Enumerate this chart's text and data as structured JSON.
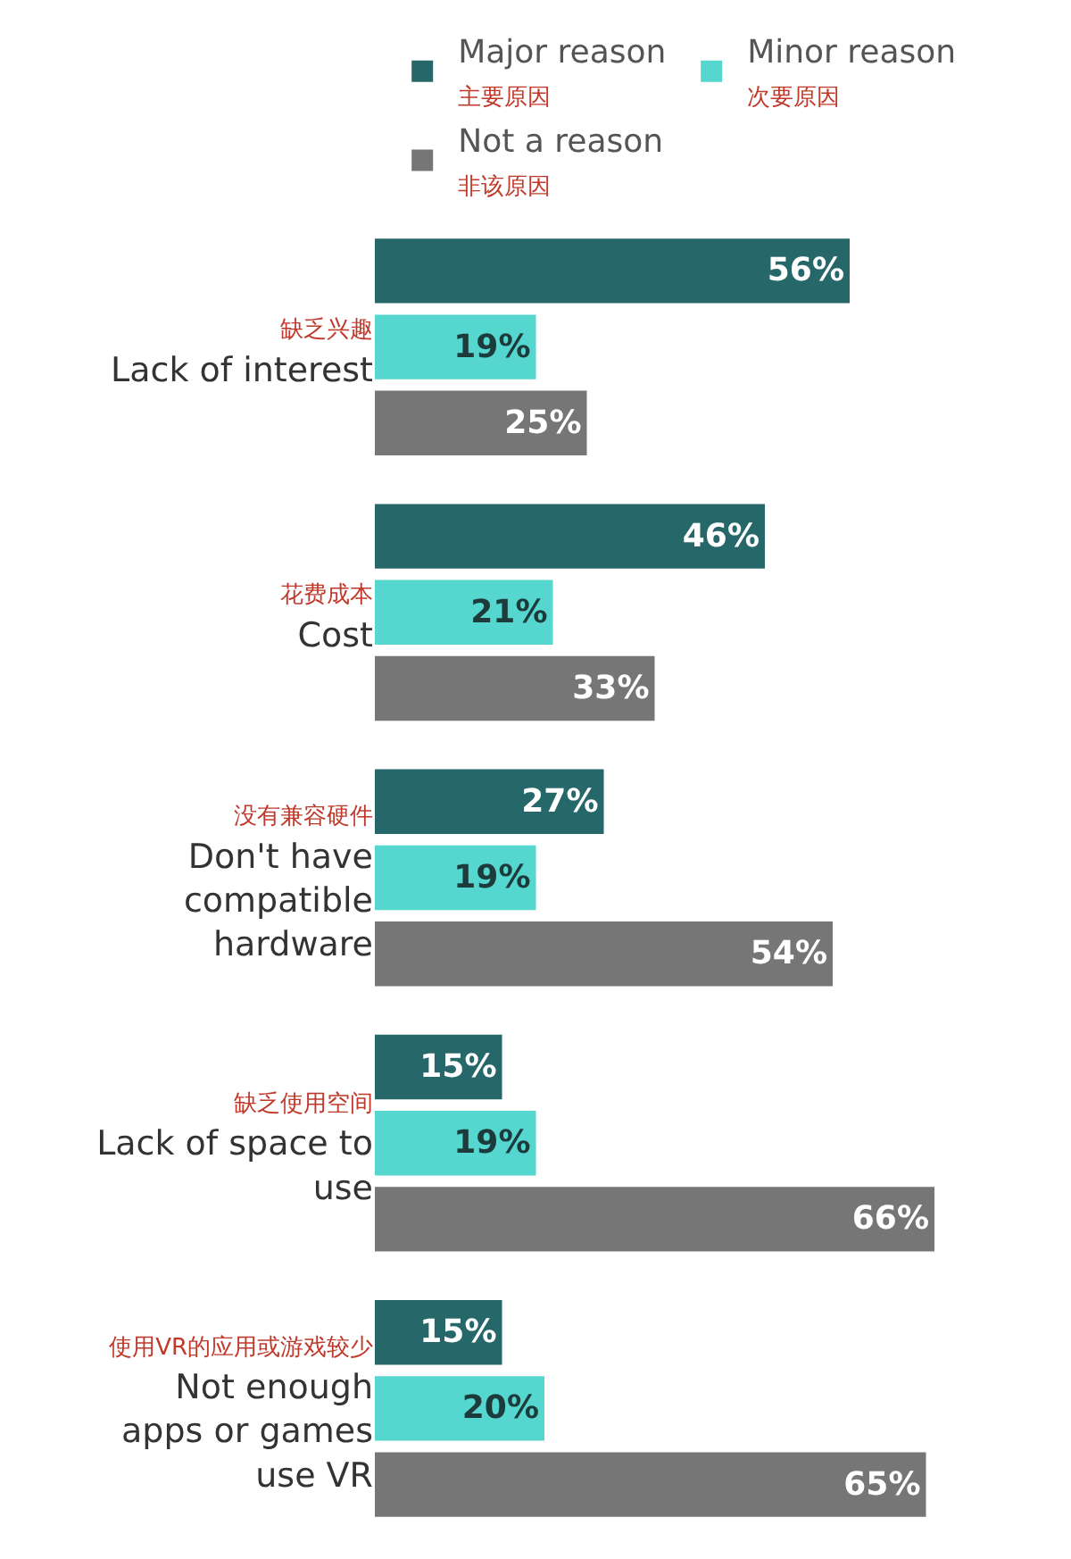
{
  "chart_data": {
    "type": "bar",
    "orientation": "horizontal",
    "categories": [
      "缺乏兴趣\nLack of interest",
      "花费成本\nCost",
      "没有兼容硬件\nDon't have\ncompatible\nhardware",
      "缺乏使用空间\nLack of space to\nuse",
      "使用VR的应用或游戏较少\nNot enough\napps or games\nuse VR"
    ],
    "series": [
      {
        "name": "Major reason\n主要原因",
        "color": "#26686a",
        "values": [
          56,
          46,
          27,
          15,
          15
        ],
        "value_labels": [
          "56%",
          "46%",
          "27%",
          "15%",
          "15%"
        ]
      },
      {
        "name": "Minor reason\n次要原因",
        "color": "#55d6cf",
        "values": [
          19,
          21,
          19,
          19,
          20
        ],
        "value_labels": [
          "19%",
          "21%",
          "19%",
          "19%",
          "20%"
        ]
      },
      {
        "name": "Not a reason\n非该原因",
        "color": "#767676",
        "values": [
          25,
          33,
          54,
          66,
          65
        ],
        "value_labels": [
          "25%",
          "33%",
          "54%",
          "66%",
          "65%"
        ]
      }
    ],
    "legend": "top"
  }
}
